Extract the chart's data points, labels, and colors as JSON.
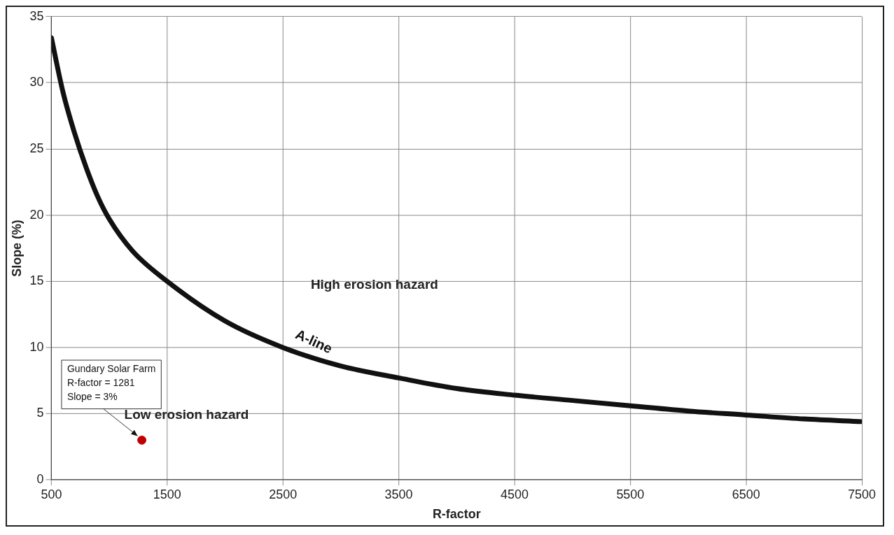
{
  "chart_data": {
    "type": "line",
    "xlabel": "R-factor",
    "ylabel": "Slope (%)",
    "xlim": [
      500,
      7500
    ],
    "xticks": [
      500,
      1500,
      2500,
      3500,
      4500,
      5500,
      6500,
      7500
    ],
    "ylim": [
      0,
      35
    ],
    "yticks": [
      0,
      5,
      10,
      15,
      20,
      25,
      30,
      35
    ],
    "grid": true,
    "legend": false,
    "series": [
      {
        "name": "A-line",
        "type": "line",
        "color": "#111111",
        "marker": "none",
        "x": [
          500,
          600,
          700,
          800,
          900,
          1000,
          1200,
          1500,
          2000,
          2500,
          3000,
          3500,
          4000,
          4500,
          5000,
          5500,
          6000,
          6500,
          7000,
          7500
        ],
        "values": [
          33.4,
          29.3,
          26.2,
          23.6,
          21.4,
          19.7,
          17.3,
          15,
          12,
          10,
          8.6,
          7.7,
          6.9,
          6.4,
          6,
          5.6,
          5.2,
          4.9,
          4.6,
          4.4
        ]
      },
      {
        "type": "scatter",
        "color": "#c00000",
        "marker": "circle",
        "x": [
          1281
        ],
        "values": [
          3
        ]
      }
    ],
    "annotations": [
      "High erosion hazard",
      "Low erosion hazard",
      {
        "text": "Gundary Solar Farm\nR-factor = 1281\nSlope = 3%",
        "x": 1281,
        "y": 3
      }
    ]
  }
}
